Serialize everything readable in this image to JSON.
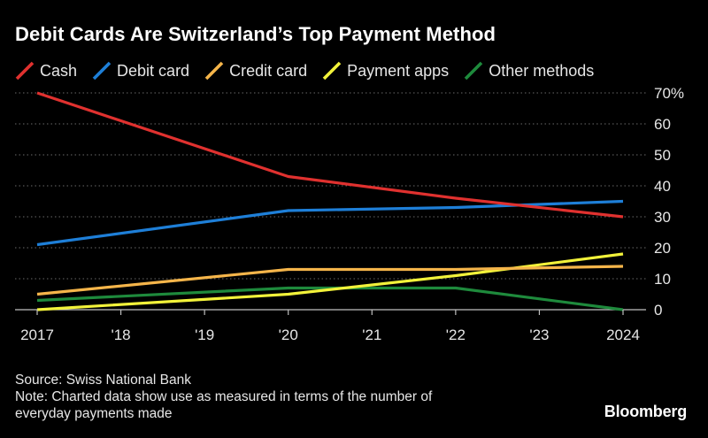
{
  "chart_data": {
    "type": "line",
    "title": "Debit Cards Are Switzerland’s Top Payment Method",
    "categories": [
      "2017",
      "'18",
      "'19",
      "'20",
      "'21",
      "'22",
      "'23",
      "2024"
    ],
    "x": [
      2017,
      2018,
      2019,
      2020,
      2021,
      2022,
      2023,
      2024
    ],
    "ylim": [
      0,
      70
    ],
    "yticks": [
      0,
      10,
      20,
      30,
      40,
      50,
      60,
      70
    ],
    "ytick_labels": [
      "0",
      "10",
      "20",
      "30",
      "40",
      "50",
      "60",
      "70%"
    ],
    "xlabel": "",
    "ylabel": "",
    "grid": true,
    "legend_position": "top-left",
    "series": [
      {
        "name": "Cash",
        "color": "#e0312f",
        "x": [
          2017,
          2020,
          2022,
          2024
        ],
        "values": [
          70,
          43,
          36,
          30
        ]
      },
      {
        "name": "Debit card",
        "color": "#1e7fd8",
        "x": [
          2017,
          2020,
          2022,
          2024
        ],
        "values": [
          21,
          32,
          33,
          35
        ]
      },
      {
        "name": "Credit card",
        "color": "#f5b54a",
        "x": [
          2017,
          2020,
          2022,
          2024
        ],
        "values": [
          5,
          13,
          13,
          14
        ]
      },
      {
        "name": "Payment apps",
        "color": "#f2f23a",
        "x": [
          2017,
          2020,
          2022,
          2024
        ],
        "values": [
          0,
          5,
          11,
          18
        ]
      },
      {
        "name": "Other methods",
        "color": "#1e8a3c",
        "x": [
          2017,
          2020,
          2022,
          2024
        ],
        "values": [
          3,
          7,
          7,
          0
        ]
      }
    ]
  },
  "footer": {
    "source": "Source: Swiss National Bank",
    "note_line1": "Note: Charted data show use as measured in terms of the number of",
    "note_line2": "everyday payments made",
    "brand": "Bloomberg"
  }
}
